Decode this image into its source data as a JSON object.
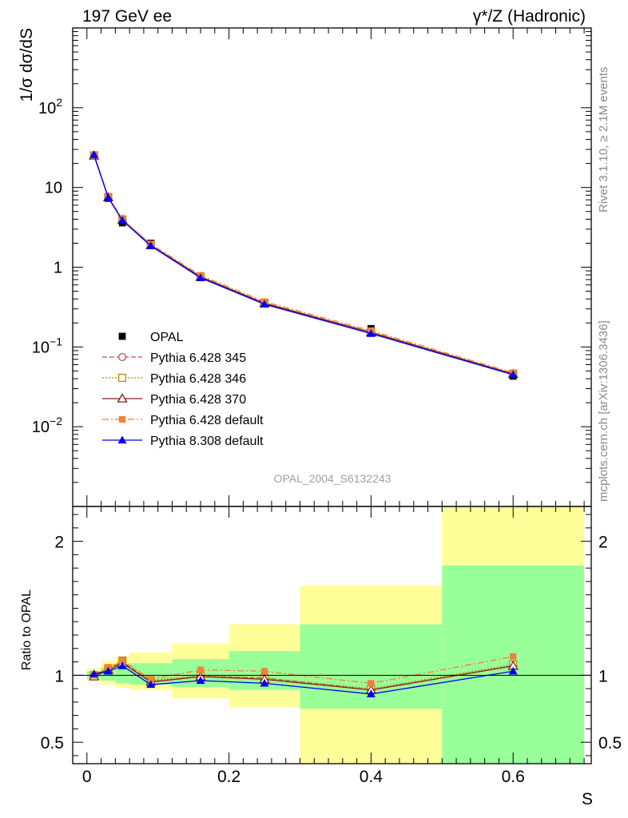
{
  "header": {
    "left": "197 GeV ee",
    "right": "γ*/Z (Hadronic)"
  },
  "side_labels": {
    "rivet": "Rivet 3.1.10, ≥ 2.1M events",
    "mcplots": "mcplots.cern.ch [arXiv:1306.3436]"
  },
  "watermark": "OPAL_2004_S6132243",
  "chart_data": [
    {
      "type": "line",
      "panel": "main",
      "ylabel": "1/σ dσ/dS",
      "yscale": "log",
      "ylim": [
        0.001,
        1000
      ],
      "y_tick_labels": [
        "10^-2",
        "10^-1",
        "1",
        "10",
        "10^2"
      ],
      "legend_position": "lower-left",
      "x": [
        0.01,
        0.03,
        0.05,
        0.09,
        0.16,
        0.25,
        0.4,
        0.6
      ],
      "data": {
        "name": "OPAL",
        "values": [
          25.5,
          7.3,
          3.6,
          2.0,
          0.76,
          0.36,
          0.17,
          0.043
        ]
      },
      "series": [
        {
          "name": "Pythia 6.428 345",
          "color": "#c05050",
          "dash": "dashed",
          "marker": "circle-open",
          "values": [
            25.2,
            7.55,
            3.95,
            1.9,
            0.76,
            0.355,
            0.153,
            0.046
          ]
        },
        {
          "name": "Pythia 6.428 346",
          "color": "#b8860b",
          "dash": "dotted",
          "marker": "square-open",
          "values": [
            25.3,
            7.6,
            3.98,
            1.91,
            0.765,
            0.357,
            0.154,
            0.0462
          ]
        },
        {
          "name": "Pythia 6.428 370",
          "color": "#8b1a1a",
          "dash": "solid",
          "marker": "triangle-open",
          "values": [
            25.0,
            7.5,
            3.9,
            1.88,
            0.755,
            0.352,
            0.152,
            0.0458
          ]
        },
        {
          "name": "Pythia 6.428 default",
          "color": "#f4803a",
          "dash": "dashdot",
          "marker": "square-filled",
          "values": [
            25.6,
            7.7,
            4.0,
            1.95,
            0.79,
            0.37,
            0.16,
            0.0475
          ]
        },
        {
          "name": "Pythia 8.308 default",
          "color": "#0000ee",
          "dash": "solid",
          "marker": "triangle-filled",
          "values": [
            25.8,
            7.45,
            3.85,
            1.85,
            0.735,
            0.343,
            0.147,
            0.0448
          ]
        }
      ]
    },
    {
      "type": "line",
      "panel": "ratio",
      "xlabel": "S",
      "ylabel": "Ratio to OPAL",
      "xlim": [
        -0.02,
        0.71
      ],
      "ylim": [
        0.34,
        2.26
      ],
      "x_tick_labels": [
        "0",
        "0.2",
        "0.4",
        "0.6"
      ],
      "y_tick_labels": [
        "0.5",
        "1",
        "2"
      ],
      "bins": [
        {
          "lo": 0.0,
          "hi": 0.02,
          "green": [
            0.97,
            1.03
          ],
          "yellow": [
            0.96,
            1.05
          ]
        },
        {
          "lo": 0.02,
          "hi": 0.04,
          "green": [
            0.96,
            1.06
          ],
          "yellow": [
            0.93,
            1.11
          ]
        },
        {
          "lo": 0.04,
          "hi": 0.06,
          "green": [
            0.94,
            1.08
          ],
          "yellow": [
            0.91,
            1.14
          ]
        },
        {
          "lo": 0.06,
          "hi": 0.12,
          "green": [
            0.93,
            1.09
          ],
          "yellow": [
            0.89,
            1.17
          ]
        },
        {
          "lo": 0.12,
          "hi": 0.2,
          "green": [
            0.91,
            1.12
          ],
          "yellow": [
            0.83,
            1.24
          ]
        },
        {
          "lo": 0.2,
          "hi": 0.3,
          "green": [
            0.89,
            1.18
          ],
          "yellow": [
            0.76,
            1.38
          ]
        },
        {
          "lo": 0.3,
          "hi": 0.5,
          "green": [
            0.75,
            1.38
          ],
          "yellow": [
            0.34,
            1.67
          ]
        },
        {
          "lo": 0.5,
          "hi": 0.7,
          "green": [
            0.34,
            1.82
          ],
          "yellow": [
            0.34,
            2.26
          ]
        }
      ],
      "series": [
        {
          "name": "Pythia 6.428 345",
          "values": [
            1.0,
            1.05,
            1.1,
            0.95,
            0.99,
            0.98,
            0.89,
            1.07
          ]
        },
        {
          "name": "Pythia 6.428 346",
          "values": [
            1.0,
            1.05,
            1.11,
            0.96,
            1.0,
            0.98,
            0.9,
            1.08
          ]
        },
        {
          "name": "Pythia 6.428 370",
          "values": [
            0.99,
            1.04,
            1.09,
            0.95,
            0.99,
            0.97,
            0.89,
            1.07
          ]
        },
        {
          "name": "Pythia 6.428 default",
          "values": [
            1.0,
            1.06,
            1.11,
            0.97,
            1.04,
            1.03,
            0.94,
            1.14
          ]
        },
        {
          "name": "Pythia 8.308 default",
          "values": [
            1.01,
            1.03,
            1.07,
            0.93,
            0.96,
            0.94,
            0.86,
            1.03
          ]
        }
      ]
    }
  ]
}
